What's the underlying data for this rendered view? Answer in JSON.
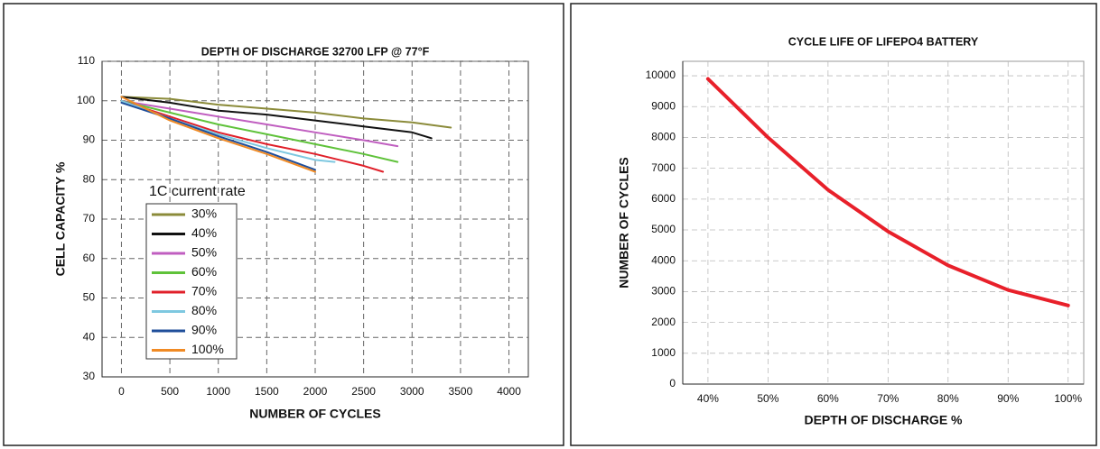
{
  "chart_data": [
    {
      "type": "line",
      "title": "DEPTH OF DISCHARGE 32700 LFP @ 77°F",
      "x_label": "NUMBER OF CYCLES",
      "y_label": "CELL CAPACITY %",
      "xlim": [
        -200,
        4200
      ],
      "xticks": [
        0,
        500,
        1000,
        1500,
        2000,
        2500,
        3000,
        3500,
        4000
      ],
      "ylim": [
        30,
        110
      ],
      "yticks": [
        30,
        40,
        50,
        60,
        70,
        80,
        90,
        100,
        110
      ],
      "grid": true,
      "legend": "lower left",
      "legend_title": "1C current rate",
      "series": [
        {
          "name": "30%",
          "color": "#8b8b3a",
          "x": [
            0,
            500,
            1000,
            1500,
            2000,
            2500,
            3000,
            3400
          ],
          "values": [
            101,
            100.5,
            99,
            98,
            97,
            95.5,
            94.5,
            93.2
          ]
        },
        {
          "name": "40%",
          "color": "#111111",
          "x": [
            0,
            500,
            1000,
            1500,
            2000,
            2500,
            3000,
            3200
          ],
          "values": [
            101,
            99.5,
            97.5,
            96.5,
            95,
            93.5,
            92,
            90.5
          ]
        },
        {
          "name": "50%",
          "color": "#c05ec0",
          "x": [
            0,
            500,
            1000,
            1500,
            2000,
            2500,
            2850
          ],
          "values": [
            100,
            98,
            96,
            94,
            92,
            90,
            88.5
          ]
        },
        {
          "name": "60%",
          "color": "#5fc23a",
          "x": [
            0,
            500,
            1000,
            1500,
            2000,
            2500,
            2850
          ],
          "values": [
            100,
            97,
            94,
            91.5,
            89,
            86.5,
            84.5
          ]
        },
        {
          "name": "70%",
          "color": "#e0202a",
          "x": [
            0,
            500,
            1000,
            1500,
            2000,
            2500,
            2700
          ],
          "values": [
            100,
            96,
            92,
            89,
            86.5,
            83.5,
            82
          ]
        },
        {
          "name": "80%",
          "color": "#7ec8e0",
          "x": [
            0,
            500,
            1000,
            1500,
            2000,
            2200
          ],
          "values": [
            100,
            95.5,
            91.5,
            88,
            85,
            84.5
          ]
        },
        {
          "name": "90%",
          "color": "#1f4e9a",
          "x": [
            0,
            500,
            1000,
            1500,
            2000
          ],
          "values": [
            99.5,
            95.5,
            91,
            87,
            82.5
          ]
        },
        {
          "name": "100%",
          "color": "#f08a24",
          "x": [
            0,
            500,
            1000,
            1500,
            2000
          ],
          "values": [
            101,
            95,
            90.5,
            86.5,
            82
          ]
        }
      ]
    },
    {
      "type": "line",
      "title": "CYCLE LIFE OF LIFEPO4 BATTERY",
      "x_label": "DEPTH OF DISCHARGE %",
      "y_label": "NUMBER OF CYCLES",
      "xlim": [
        35.8,
        102.6
      ],
      "xticks": [
        {
          "value": 40,
          "label": "40%"
        },
        {
          "value": 50,
          "label": "50%"
        },
        {
          "value": 60,
          "label": "60%"
        },
        {
          "value": 70,
          "label": "70%"
        },
        {
          "value": 80,
          "label": "80%"
        },
        {
          "value": 90,
          "label": "90%"
        },
        {
          "value": 100,
          "label": "100%"
        }
      ],
      "ylim": [
        0,
        10470
      ],
      "yticks": [
        0,
        1000,
        2000,
        3000,
        4000,
        5000,
        6000,
        7000,
        8000,
        9000,
        10000
      ],
      "grid": true,
      "series": [
        {
          "color": "#e8202a",
          "x": [
            40,
            50,
            60,
            70,
            80,
            90,
            100
          ],
          "values": [
            9900,
            8000,
            6300,
            4950,
            3850,
            3050,
            2550
          ]
        }
      ]
    }
  ]
}
